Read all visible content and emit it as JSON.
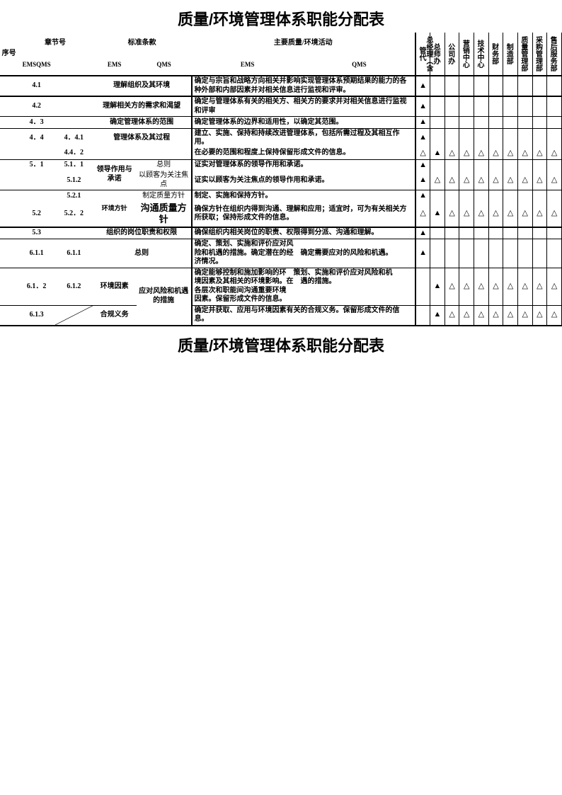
{
  "title": "质量/环境管理体系职能分配表",
  "headers": {
    "seq": "序号",
    "chapter": "章节号",
    "std": "标准条款",
    "activity": "主要质量/环境活动",
    "emssqms": "EMSQMS",
    "ems": "EMS",
    "qms": "QMS"
  },
  "depts": [
    "总经理（含管代",
    "总师办",
    "公司办",
    "营销中心",
    "技术中心",
    "财务部",
    "制造部",
    "质量管理部",
    "采购管理部",
    "售后服务部"
  ],
  "rows": [
    {
      "c1": "4.1",
      "c2": "",
      "c3": "理解组织及其环境",
      "c4": "",
      "a": "确定与宗旨和战略方向相关并影响实现管理体系预期结果的能力的各种外部和内部因素并对相关信息进行监视和评审。",
      "m": [
        "▲",
        "",
        "",
        "",
        "",
        "",
        "",
        "",
        "",
        ""
      ],
      "bb": 2
    },
    {
      "c1": "4.2",
      "c2": "",
      "c3": "理解相关方的需求和渴望",
      "c4": "",
      "a": "确定与管理体系有关的相关方、相关方的要求并对相关信息进行监视和评审",
      "m": [
        "▲",
        "",
        "",
        "",
        "",
        "",
        "",
        "",
        "",
        ""
      ],
      "bb": 1
    },
    {
      "c1": "4．3",
      "c2": "",
      "c3": "确定管理体系的范围",
      "c4": "",
      "a": "确定管理体系的边界和适用性，以确定其范围。",
      "m": [
        "▲",
        "",
        "",
        "",
        "",
        "",
        "",
        "",
        "",
        ""
      ],
      "bb": 1
    },
    {
      "c1": "4．4",
      "c2": "4．4.1",
      "c3": "管理体系及其过程",
      "c4": "",
      "a": "建立、实施、保持和持续改进管理体系，包括所需过程及其相互作用。",
      "m": [
        "▲",
        "",
        "",
        "",
        "",
        "",
        "",
        "",
        "",
        ""
      ],
      "bb": 0
    },
    {
      "c1": "",
      "c2": "4.4．2",
      "c3": "",
      "c4": "",
      "a": "在必要的范围和程度上保持保留形成文件的信息。",
      "m": [
        "△",
        "▲",
        "△",
        "△",
        "△",
        "△",
        "△",
        "△",
        "△",
        "△"
      ],
      "bb": 1
    },
    {
      "c1": "5．1",
      "c2": "5.1．1",
      "c3r": 2,
      "c3": "领导作用与承诺",
      "c4": "总则",
      "a": "证实对管理体系的领导作用和承诺。",
      "m": [
        "▲",
        "",
        "",
        "",
        "",
        "",
        "",
        "",
        "",
        ""
      ],
      "bb": 0
    },
    {
      "c1": "",
      "c2": "5.1.2",
      "c3": "",
      "c4": "以顾客为关注焦点",
      "a": "证实以顾客为关注焦点的领导作用和承诺。",
      "m": [
        "▲",
        "△",
        "△",
        "△",
        "△",
        "△",
        "△",
        "△",
        "△",
        "△"
      ],
      "bb": 1
    },
    {
      "c1": "",
      "c2": "5.2.1",
      "c3r": 2,
      "c3": "环境方针",
      "c4": "制定质量方针",
      "a": "制定、实施和保持方针。",
      "m": [
        "▲",
        "",
        "",
        "",
        "",
        "",
        "",
        "",
        "",
        ""
      ],
      "bb": 0,
      "c3small": true
    },
    {
      "c1": "5.2",
      "c2": "5.2．2",
      "c3": "",
      "c4": "沟通质量方针",
      "c4bold": true,
      "a": "确保方针在组织内得到沟通、理解和应用；适宜时，可为有关相关方所获取；保持形成文件的信息。",
      "m": [
        "△",
        "▲",
        "△",
        "△",
        "△",
        "△",
        "△",
        "△",
        "△",
        "△"
      ],
      "bb": 2
    },
    {
      "c1": "5.3",
      "c2": "",
      "c3": "组织的岗位职责和权限",
      "c4": "",
      "a": "确保组织内相关岗位的职责、权限得到分派、沟通和理解。",
      "m": [
        "▲",
        "",
        "",
        "",
        "",
        "",
        "",
        "",
        "",
        ""
      ],
      "bb": 1
    },
    {
      "c1": "6.1.1",
      "c2": "6.1.1",
      "c3": "总则",
      "c4": "",
      "a": "确定、策划、实施和评价应对风\n险和机遇的措施。确定潜在的经　确定需要应对的风险和机遇。\n济情况。",
      "m": [
        "▲",
        "",
        "",
        "",
        "",
        "",
        "",
        "",
        "",
        ""
      ],
      "bb": 1
    },
    {
      "c1": "6.1．2",
      "c2": "6.1.2",
      "c3": "环境因素",
      "c4r": 2,
      "c4": "应对风险和机遇的措施",
      "c4at": -1,
      "a": "确定能够控制和施加影响的环　策划、实施和评价应对风险和机\n境因素及其相关的环境影响。在　遇的措施。\n各层次和职能间沟通重要环境\n因素。保留形成文件的信息。",
      "m": [
        "",
        "▲",
        "△",
        "△",
        "△",
        "△",
        "△",
        "△",
        "△",
        "△"
      ],
      "bb": 1
    },
    {
      "c1": "6.1.3",
      "c2": "",
      "c3": "合规义务",
      "c4": "",
      "a": "确定并获取、应用与环境因素有关的合规义务。保留形成文件的信息。",
      "m": [
        "",
        "▲",
        "△",
        "△",
        "△",
        "△",
        "△",
        "△",
        "△",
        "△"
      ],
      "bb": 2,
      "diag": true
    }
  ]
}
